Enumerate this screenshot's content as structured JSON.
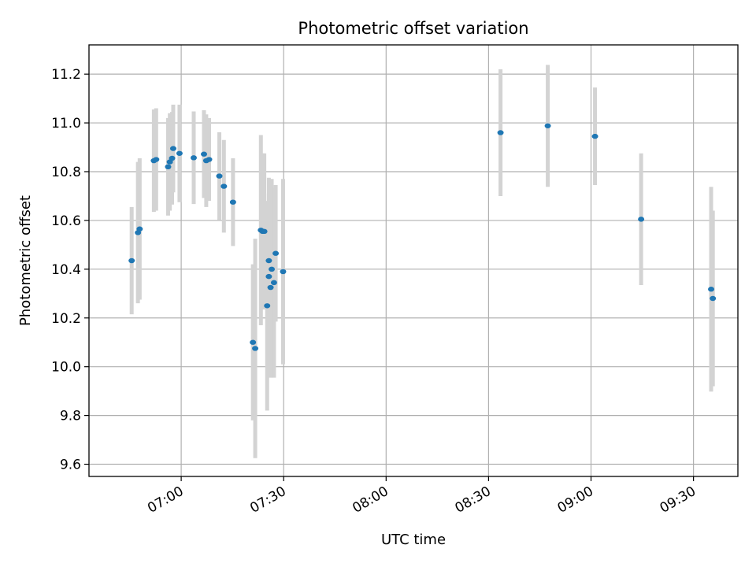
{
  "chart_data": {
    "type": "scatter",
    "title": "Photometric offset variation",
    "xlabel": "UTC time",
    "ylabel": "Photometric offset",
    "x_unit": "UTC time (HH:MM)",
    "xlim": [
      "06:33",
      "09:43"
    ],
    "ylim": [
      9.55,
      11.32
    ],
    "x_ticks": [
      "07:00",
      "07:30",
      "08:00",
      "08:30",
      "09:00",
      "09:30"
    ],
    "y_ticks": [
      9.6,
      9.8,
      10.0,
      10.2,
      10.4,
      10.6,
      10.8,
      11.0,
      11.2
    ],
    "y_tick_labels": [
      "9.6",
      "9.8",
      "10.0",
      "10.2",
      "10.4",
      "10.6",
      "10.8",
      "11.0",
      "11.2"
    ],
    "grid": true,
    "colors": {
      "marker": "#1f77b4",
      "errorbar": "#d3d3d3",
      "grid": "#b0b0b0"
    },
    "points": [
      {
        "x": "06:45:30",
        "y": 10.435,
        "err": 0.22
      },
      {
        "x": "06:47:20",
        "y": 10.55,
        "err": 0.29
      },
      {
        "x": "06:47:50",
        "y": 10.565,
        "err": 0.29
      },
      {
        "x": "06:52:00",
        "y": 10.845,
        "err": 0.21
      },
      {
        "x": "06:52:40",
        "y": 10.85,
        "err": 0.21
      },
      {
        "x": "06:56:10",
        "y": 10.82,
        "err": 0.2
      },
      {
        "x": "06:56:40",
        "y": 10.84,
        "err": 0.2
      },
      {
        "x": "06:57:20",
        "y": 10.855,
        "err": 0.19
      },
      {
        "x": "06:57:40",
        "y": 10.895,
        "err": 0.18
      },
      {
        "x": "06:59:30",
        "y": 10.875,
        "err": 0.2
      },
      {
        "x": "07:03:40",
        "y": 10.857,
        "err": 0.19
      },
      {
        "x": "07:06:40",
        "y": 10.872,
        "err": 0.18
      },
      {
        "x": "07:07:20",
        "y": 10.845,
        "err": 0.19
      },
      {
        "x": "07:08:10",
        "y": 10.85,
        "err": 0.17
      },
      {
        "x": "07:11:10",
        "y": 10.782,
        "err": 0.18
      },
      {
        "x": "07:12:30",
        "y": 10.74,
        "err": 0.19
      },
      {
        "x": "07:15:10",
        "y": 10.675,
        "err": 0.18
      },
      {
        "x": "07:21:00",
        "y": 10.1,
        "err": 0.32
      },
      {
        "x": "07:21:40",
        "y": 10.075,
        "err": 0.45
      },
      {
        "x": "07:23:20",
        "y": 10.56,
        "err": 0.39
      },
      {
        "x": "07:23:50",
        "y": 10.555,
        "err": 0.32
      },
      {
        "x": "07:24:20",
        "y": 10.555,
        "err": 0.32
      },
      {
        "x": "07:25:10",
        "y": 10.25,
        "err": 0.43
      },
      {
        "x": "07:25:40",
        "y": 10.435,
        "err": 0.34
      },
      {
        "x": "07:25:40",
        "y": 10.37,
        "err": 0.34
      },
      {
        "x": "07:26:10",
        "y": 10.325,
        "err": 0.37
      },
      {
        "x": "07:26:30",
        "y": 10.4,
        "err": 0.37
      },
      {
        "x": "07:27:10",
        "y": 10.345,
        "err": 0.39
      },
      {
        "x": "07:27:40",
        "y": 10.465,
        "err": 0.28
      },
      {
        "x": "07:29:50",
        "y": 10.39,
        "err": 0.38
      },
      {
        "x": "08:33:30",
        "y": 10.96,
        "err": 0.26
      },
      {
        "x": "08:47:20",
        "y": 10.988,
        "err": 0.25
      },
      {
        "x": "09:01:10",
        "y": 10.945,
        "err": 0.2
      },
      {
        "x": "09:14:40",
        "y": 10.605,
        "err": 0.27
      },
      {
        "x": "09:35:10",
        "y": 10.318,
        "err": 0.42
      },
      {
        "x": "09:35:40",
        "y": 10.28,
        "err": 0.36
      }
    ]
  }
}
